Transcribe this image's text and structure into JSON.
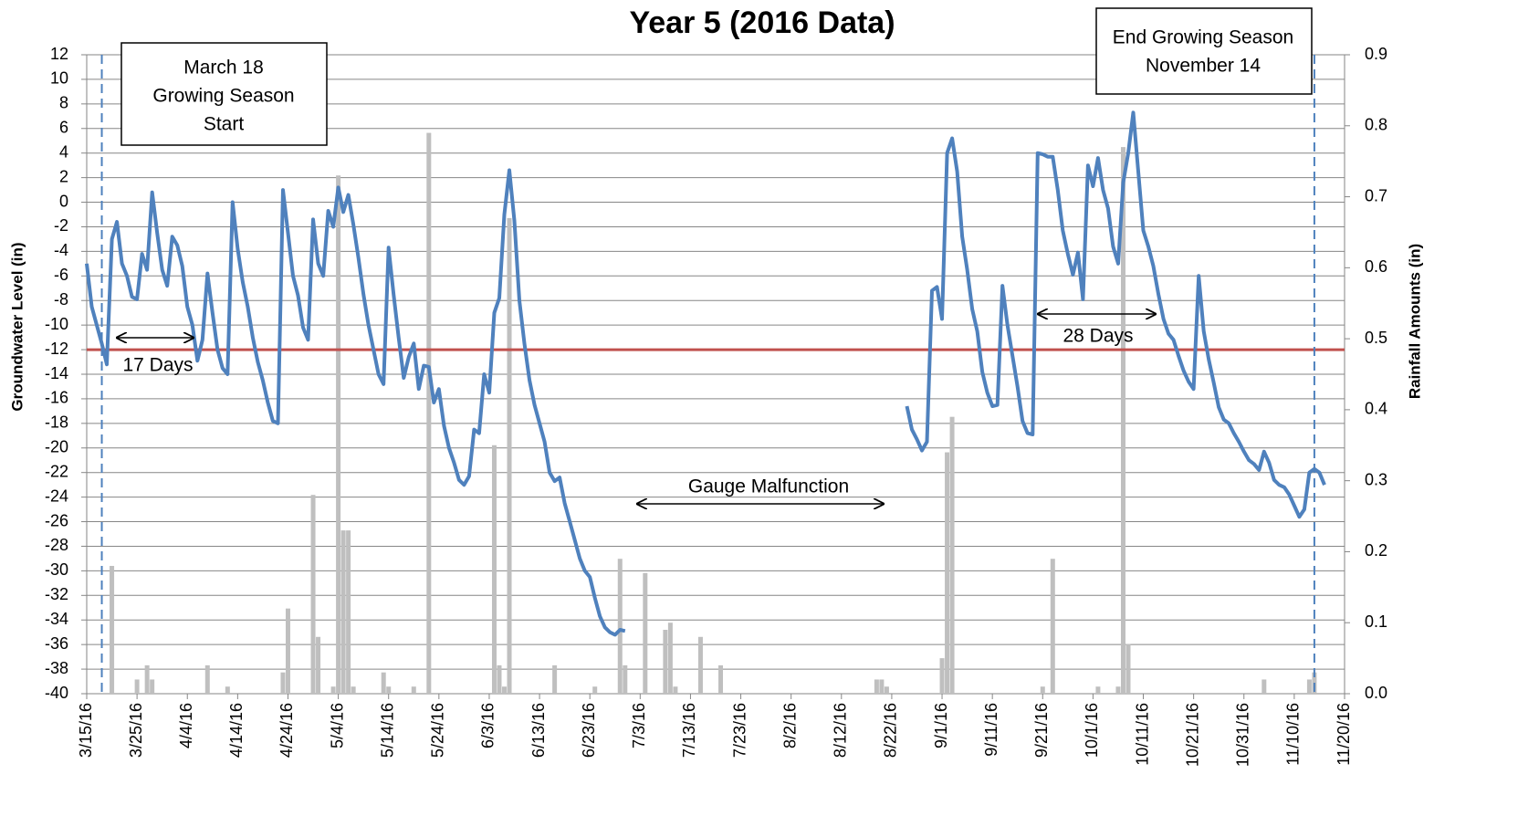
{
  "chart_data": {
    "type": "line",
    "title": "Year 5 (2016 Data)",
    "ylabel": "Groundwater Level (in)",
    "y2label": "Rainfall Amounts (in)",
    "xlim": [
      "3/15/16",
      "11/20/16"
    ],
    "xticks": [
      "3/15/16",
      "3/25/16",
      "4/4/16",
      "4/14/16",
      "4/24/16",
      "5/4/16",
      "5/14/16",
      "5/24/16",
      "6/3/16",
      "6/13/16",
      "6/23/16",
      "7/3/16",
      "7/13/16",
      "7/23/16",
      "8/2/16",
      "8/12/16",
      "8/22/16",
      "9/1/16",
      "9/11/16",
      "9/21/16",
      "10/1/16",
      "10/11/16",
      "10/21/16",
      "10/31/16",
      "11/10/16",
      "11/20/16"
    ],
    "ylim": [
      -40,
      12
    ],
    "yticks": [
      -40,
      -38,
      -36,
      -34,
      -32,
      -30,
      -28,
      -26,
      -24,
      -22,
      -20,
      -18,
      -16,
      -14,
      -12,
      -10,
      -8,
      -6,
      -4,
      -2,
      0,
      2,
      4,
      6,
      8,
      10,
      12
    ],
    "y2lim": [
      0,
      0.9
    ],
    "y2ticks": [
      {
        "value": 0,
        "label": "0.0"
      },
      0.1,
      0.2,
      0.3,
      0.4,
      0.5,
      0.6,
      0.7,
      0.8,
      0.9
    ],
    "grid": true,
    "threshold": {
      "value": -12,
      "color": "#c0504d"
    },
    "vlines": {
      "x": [
        "3/18/16",
        "11/14/16"
      ],
      "color": "#4f81bd"
    },
    "annotations": [
      {
        "lines": [
          "March 18",
          "Growing Season",
          "Start"
        ]
      },
      {
        "lines": [
          "End Growing Season",
          "November  14"
        ]
      },
      {
        "text": "17 Days"
      },
      {
        "text": "28 Days"
      },
      {
        "text": "Gauge Malfunction"
      }
    ],
    "series": [
      {
        "type": "bar",
        "axis": "y2",
        "color": "#bfbfbf",
        "x": [
          "3/20/16",
          "3/25/16",
          "3/27/16",
          "3/28/16",
          "4/8/16",
          "4/12/16",
          "4/23/16",
          "4/24/16",
          "4/29/16",
          "4/30/16",
          "5/3/16",
          "5/4/16",
          "5/5/16",
          "5/6/16",
          "5/7/16",
          "5/13/16",
          "5/14/16",
          "5/19/16",
          "5/22/16",
          "6/4/16",
          "6/5/16",
          "6/6/16",
          "6/7/16",
          "6/16/16",
          "6/24/16",
          "6/29/16",
          "6/30/16",
          "7/4/16",
          "7/8/16",
          "7/9/16",
          "7/10/16",
          "7/15/16",
          "7/19/16",
          "8/19/16",
          "8/20/16",
          "8/21/16",
          "9/1/16",
          "9/2/16",
          "9/3/16",
          "9/21/16",
          "9/23/16",
          "10/2/16",
          "10/6/16",
          "10/7/16",
          "10/8/16",
          "11/4/16",
          "11/13/16",
          "11/14/16"
        ],
        "values": [
          0.18,
          0.02,
          0.04,
          0.02,
          0.04,
          0.01,
          0.03,
          0.12,
          0.28,
          0.08,
          0.01,
          0.73,
          0.23,
          0.23,
          0.01,
          0.03,
          0.01,
          0.01,
          0.79,
          0.35,
          0.04,
          0.01,
          0.67,
          0.04,
          0.01,
          0.19,
          0.04,
          0.17,
          0.09,
          0.1,
          0.01,
          0.08,
          0.04,
          0.02,
          0.02,
          0.01,
          0.05,
          0.34,
          0.39,
          0.01,
          0.19,
          0.01,
          0.01,
          0.77,
          0.07,
          0.02,
          0.02,
          0.03
        ]
      },
      {
        "type": "line",
        "color": "#4f81bd",
        "x": [
          "3/15/16",
          "3/16/16",
          "3/17/16",
          "3/18/16",
          "3/19/16",
          "3/20/16",
          "3/21/16",
          "3/22/16",
          "3/23/16",
          "3/24/16",
          "3/25/16",
          "3/26/16",
          "3/27/16",
          "3/28/16",
          "3/29/16",
          "3/30/16",
          "3/31/16",
          "4/1/16",
          "4/2/16",
          "4/3/16",
          "4/4/16",
          "4/5/16",
          "4/6/16",
          "4/7/16",
          "4/8/16",
          "4/9/16",
          "4/10/16",
          "4/11/16",
          "4/12/16",
          "4/13/16",
          "4/14/16",
          "4/15/16",
          "4/16/16",
          "4/17/16",
          "4/18/16",
          "4/19/16",
          "4/20/16",
          "4/21/16",
          "4/22/16",
          "4/23/16",
          "4/24/16",
          "4/25/16",
          "4/26/16",
          "4/27/16",
          "4/28/16",
          "4/29/16",
          "4/30/16",
          "5/1/16",
          "5/2/16",
          "5/3/16",
          "5/4/16",
          "5/5/16",
          "5/6/16",
          "5/7/16",
          "5/8/16",
          "5/9/16",
          "5/10/16",
          "5/11/16",
          "5/12/16",
          "5/13/16",
          "5/14/16",
          "5/15/16",
          "5/16/16",
          "5/17/16",
          "5/18/16",
          "5/19/16",
          "5/20/16",
          "5/21/16",
          "5/22/16",
          "5/23/16",
          "5/24/16",
          "5/25/16",
          "5/26/16",
          "5/27/16",
          "5/28/16",
          "5/29/16",
          "5/30/16",
          "5/31/16",
          "6/1/16",
          "6/2/16",
          "6/3/16",
          "6/4/16",
          "6/5/16",
          "6/6/16",
          "6/7/16",
          "6/8/16",
          "6/9/16",
          "6/10/16",
          "6/11/16",
          "6/12/16",
          "6/13/16",
          "6/14/16",
          "6/15/16",
          "6/16/16",
          "6/17/16",
          "6/18/16",
          "6/19/16",
          "6/20/16",
          "6/21/16",
          "6/22/16",
          "6/23/16",
          "6/24/16",
          "6/25/16",
          "6/26/16",
          "6/27/16",
          "6/28/16",
          "6/29/16",
          "6/30/16",
          "8/1/16",
          "8/25/16",
          "8/26/16",
          "8/27/16",
          "8/28/16",
          "8/29/16",
          "8/30/16",
          "8/31/16",
          "9/1/16",
          "9/2/16",
          "9/3/16",
          "9/4/16",
          "9/5/16",
          "9/6/16",
          "9/7/16",
          "9/8/16",
          "9/9/16",
          "9/10/16",
          "9/11/16",
          "9/12/16",
          "9/13/16",
          "9/14/16",
          "9/15/16",
          "9/16/16",
          "9/17/16",
          "9/18/16",
          "9/19/16",
          "9/20/16",
          "9/21/16",
          "9/22/16",
          "9/23/16",
          "9/24/16",
          "9/25/16",
          "9/26/16",
          "9/27/16",
          "9/28/16",
          "9/29/16",
          "9/30/16",
          "10/1/16",
          "10/2/16",
          "10/3/16",
          "10/4/16",
          "10/5/16",
          "10/6/16",
          "10/7/16",
          "10/8/16",
          "10/9/16",
          "10/10/16",
          "10/11/16",
          "10/12/16",
          "10/13/16",
          "10/14/16",
          "10/15/16",
          "10/16/16",
          "10/17/16",
          "10/18/16",
          "10/19/16",
          "10/20/16",
          "10/21/16",
          "10/22/16",
          "10/23/16",
          "10/24/16",
          "10/25/16",
          "10/26/16",
          "10/27/16",
          "10/28/16",
          "10/29/16",
          "10/30/16",
          "10/31/16",
          "11/1/16",
          "11/2/16",
          "11/3/16",
          "11/4/16",
          "11/5/16",
          "11/6/16",
          "11/7/16",
          "11/8/16",
          "11/9/16",
          "11/10/16",
          "11/11/16",
          "11/12/16",
          "11/13/16",
          "11/14/16",
          "11/15/16",
          "11/16/16"
        ],
        "values": [
          -5,
          -8.5,
          -10,
          -11.5,
          -13.2,
          -3,
          -1.6,
          -5,
          -6,
          -7.7,
          -7.9,
          -4.2,
          -5.5,
          0.8,
          -2.5,
          -5.5,
          -6.8,
          -2.8,
          -3.5,
          -5.2,
          -8.5,
          -10,
          -12.9,
          -11.2,
          -5.8,
          -9,
          -12,
          -13.5,
          -14,
          0,
          -3.8,
          -6.5,
          -8.5,
          -11,
          -13,
          -14.5,
          -16.3,
          -17.8,
          -18,
          1,
          -2.5,
          -6,
          -7.6,
          -10.2,
          -11.2,
          -1.4,
          -5,
          -6,
          -0.7,
          -2,
          1.2,
          -0.8,
          0.6,
          -1.8,
          -4.5,
          -7.5,
          -10,
          -12,
          -14,
          -14.8,
          -3.7,
          -7.5,
          -11,
          -14.3,
          -12.6,
          -11.5,
          -15.2,
          -13.3,
          -13.4,
          -16.3,
          -15.2,
          -18.2,
          -20,
          -21.2,
          -22.6,
          -23,
          -22.3,
          -18.5,
          -18.8,
          -14,
          -15.5,
          -9,
          -7.8,
          -1,
          2.6,
          -1.5,
          -8,
          -11.5,
          -14.5,
          -16.5,
          -18,
          -19.5,
          -22,
          -22.7,
          -22.4,
          -24.5,
          -26,
          -27.5,
          -29,
          -30,
          -30.5,
          -32.2,
          -33.7,
          -34.6,
          -35,
          -35.2,
          -34.8,
          -34.9,
          null,
          -16.6,
          -18.5,
          -19.3,
          -20.2,
          -19.5,
          -7.2,
          -6.9,
          -9.5,
          4,
          5.2,
          2.5,
          -2.8,
          -5.5,
          -8.7,
          -10.5,
          -13.8,
          -15.5,
          -16.6,
          -16.5,
          -6.8,
          -10,
          -12.5,
          -15,
          -17.8,
          -18.8,
          -18.9,
          4,
          3.9,
          3.7,
          3.7,
          1,
          -2.3,
          -4.2,
          -5.9,
          -4.1,
          -7.9,
          3,
          1.3,
          3.6,
          1,
          -0.5,
          -3.6,
          -5,
          1.6,
          4,
          7.3,
          2.5,
          -2.3,
          -3.6,
          -5.2,
          -7.5,
          -9.5,
          -10.7,
          -11.2,
          -12.5,
          -13.7,
          -14.6,
          -15.2,
          -6,
          -10.5,
          -12.8,
          -14.7,
          -16.7,
          -17.7,
          -18,
          -18.8,
          -19.5,
          -20.3,
          -21,
          -21.3,
          -21.8,
          -20.3,
          -21.2,
          -22.6,
          -23,
          -23.2,
          -23.8,
          -24.7,
          -25.6,
          -25,
          -22,
          -21.7,
          -22,
          -23
        ]
      }
    ]
  }
}
